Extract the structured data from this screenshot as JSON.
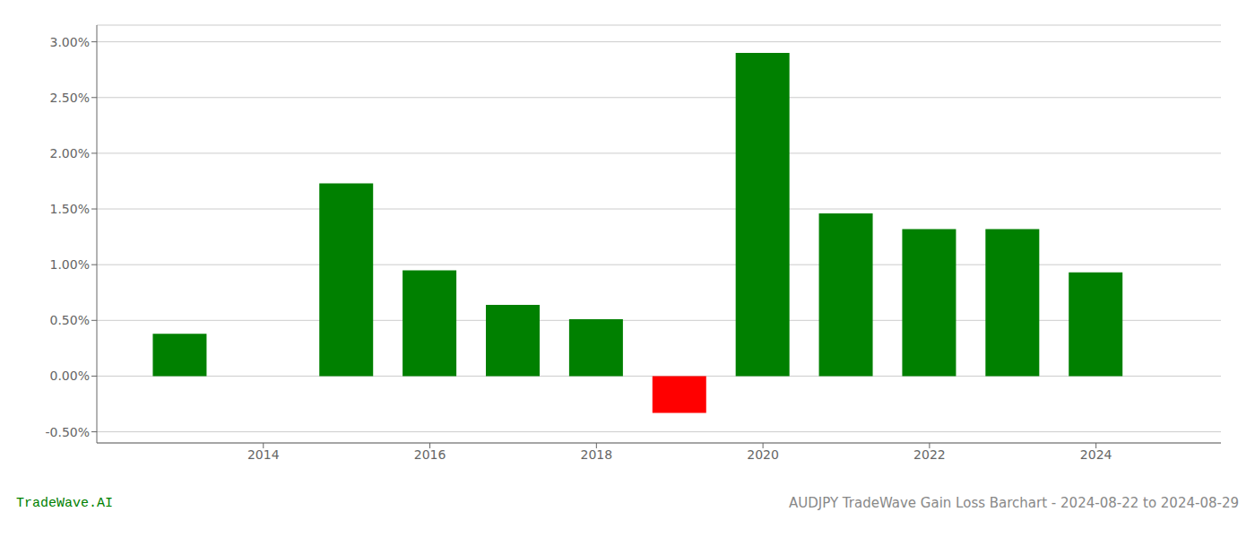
{
  "chart_data": {
    "type": "bar",
    "title": "AUDJPY TradeWave Gain Loss Barchart - 2024-08-22 to 2024-08-29",
    "annotations": [
      {
        "text": "TradeWave.AI",
        "color": "#008000"
      }
    ],
    "x": [
      2013,
      2015,
      2016,
      2017,
      2018,
      2019,
      2020,
      2021,
      2022,
      2023,
      2024
    ],
    "values": [
      0.38,
      1.73,
      0.95,
      0.64,
      0.51,
      -0.33,
      2.9,
      1.46,
      1.32,
      1.32,
      0.93
    ],
    "colors": [
      "#008000",
      "#008000",
      "#008000",
      "#008000",
      "#008000",
      "#ff0000",
      "#008000",
      "#008000",
      "#008000",
      "#008000",
      "#008000"
    ],
    "xlim": [
      2012.0,
      2025.5
    ],
    "xticks": [
      2014,
      2016,
      2018,
      2020,
      2022,
      2024
    ],
    "ylim": [
      -0.6,
      3.15
    ],
    "yticks": [
      {
        "value": -0.5,
        "label": "-0.50%"
      },
      {
        "value": 0.0,
        "label": "0.00%"
      },
      {
        "value": 0.5,
        "label": "0.50%"
      },
      {
        "value": 1.0,
        "label": "1.00%"
      },
      {
        "value": 1.5,
        "label": "1.50%"
      },
      {
        "value": 2.0,
        "label": "2.00%"
      },
      {
        "value": 2.5,
        "label": "2.50%"
      },
      {
        "value": 3.0,
        "label": "3.00%"
      }
    ],
    "grid": true
  }
}
